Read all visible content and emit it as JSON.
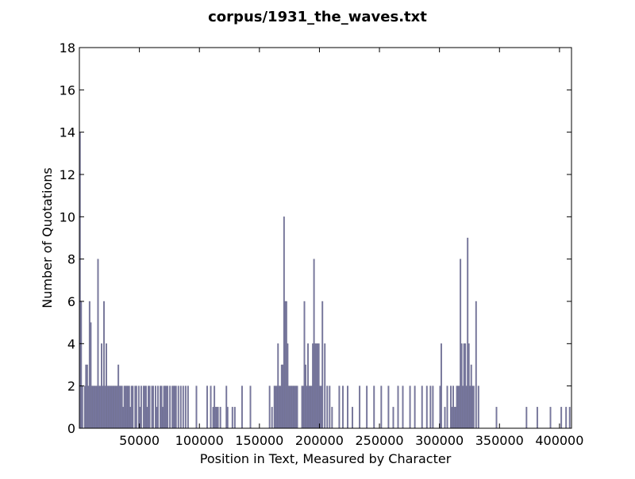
{
  "chart_data": {
    "type": "bar",
    "title": "corpus/1931_the_waves.txt",
    "xlabel": "Position in Text, Measured by Character",
    "ylabel": "Number of Quotations",
    "xlim": [
      0,
      410000
    ],
    "ylim": [
      0,
      18
    ],
    "xticks": [
      50000,
      100000,
      150000,
      200000,
      250000,
      300000,
      350000,
      400000
    ],
    "yticks": [
      0,
      2,
      4,
      6,
      8,
      10,
      12,
      14,
      16,
      18
    ],
    "grid": false,
    "bar_color": "#7777a0",
    "bin_width": 1000,
    "x": [
      0,
      1000,
      2000,
      4000,
      5000,
      6000,
      7000,
      8000,
      9000,
      10000,
      11000,
      12000,
      13000,
      14000,
      15000,
      16000,
      17000,
      18000,
      19000,
      20000,
      21000,
      22000,
      23000,
      24000,
      25000,
      26000,
      27000,
      28000,
      29000,
      30000,
      31000,
      32000,
      33000,
      34000,
      35000,
      36000,
      37000,
      38000,
      39000,
      40000,
      41000,
      42000,
      43000,
      44000,
      46000,
      47000,
      49000,
      50000,
      51000,
      53000,
      54000,
      55000,
      56000,
      57000,
      58000,
      60000,
      61000,
      63000,
      64000,
      65000,
      67000,
      68000,
      69000,
      70000,
      71000,
      72000,
      73000,
      75000,
      77000,
      78000,
      79000,
      80000,
      82000,
      84000,
      86000,
      88000,
      90000,
      97000,
      106000,
      109000,
      111000,
      112000,
      113000,
      114000,
      115000,
      117000,
      122000,
      123000,
      127000,
      129000,
      135000,
      142000,
      158000,
      160000,
      162000,
      163000,
      164000,
      165000,
      166000,
      167000,
      168000,
      169000,
      170000,
      171000,
      172000,
      173000,
      174000,
      175000,
      176000,
      177000,
      178000,
      179000,
      180000,
      181000,
      185000,
      186000,
      187000,
      188000,
      189000,
      190000,
      191000,
      192000,
      193000,
      194000,
      195000,
      196000,
      197000,
      198000,
      199000,
      200000,
      201000,
      202000,
      204000,
      206000,
      208000,
      210000,
      216000,
      219000,
      223000,
      227000,
      233000,
      239000,
      245000,
      251000,
      257000,
      261000,
      265000,
      269000,
      275000,
      279000,
      285000,
      289000,
      292000,
      294000,
      300000,
      301000,
      304000,
      306000,
      309000,
      310000,
      311000,
      312000,
      313000,
      314000,
      315000,
      316000,
      317000,
      318000,
      319000,
      320000,
      321000,
      322000,
      323000,
      324000,
      325000,
      326000,
      327000,
      328000,
      330000,
      332000,
      347000,
      372000,
      381000,
      392000,
      401000,
      405000,
      408000
    ],
    "values": [
      14,
      6,
      2,
      2,
      3,
      3,
      2,
      6,
      5,
      2,
      2,
      2,
      2,
      2,
      8,
      2,
      2,
      4,
      2,
      6,
      2,
      4,
      2,
      2,
      2,
      2,
      2,
      2,
      2,
      2,
      2,
      3,
      2,
      2,
      2,
      1,
      2,
      2,
      2,
      2,
      2,
      1,
      2,
      2,
      2,
      2,
      2,
      1,
      2,
      2,
      2,
      2,
      1,
      2,
      2,
      2,
      2,
      2,
      1,
      2,
      2,
      2,
      1,
      2,
      2,
      2,
      2,
      2,
      2,
      2,
      2,
      2,
      2,
      2,
      2,
      2,
      2,
      2,
      2,
      2,
      1,
      2,
      1,
      1,
      1,
      1,
      2,
      1,
      1,
      1,
      2,
      2,
      2,
      1,
      2,
      2,
      2,
      4,
      2,
      2,
      3,
      3,
      10,
      6,
      6,
      4,
      2,
      2,
      2,
      2,
      2,
      2,
      2,
      2,
      2,
      2,
      6,
      3,
      2,
      4,
      2,
      2,
      2,
      4,
      8,
      4,
      4,
      4,
      4,
      2,
      2,
      6,
      4,
      2,
      2,
      1,
      2,
      2,
      2,
      1,
      2,
      2,
      2,
      2,
      2,
      1,
      2,
      2,
      2,
      2,
      2,
      2,
      2,
      2,
      2,
      4,
      1,
      2,
      2,
      1,
      2,
      1,
      1,
      2,
      2,
      2,
      8,
      4,
      2,
      4,
      4,
      2,
      9,
      4,
      2,
      3,
      2,
      2,
      6,
      2,
      1,
      1,
      1,
      1,
      1,
      1,
      1
    ]
  }
}
